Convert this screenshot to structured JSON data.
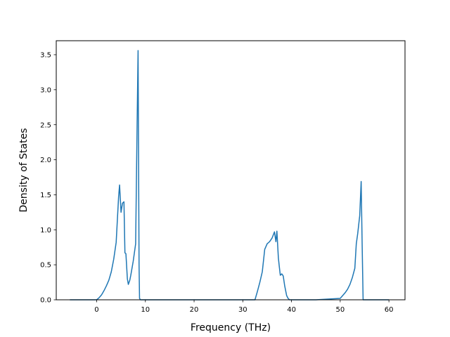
{
  "chart_data": {
    "type": "line",
    "title": "",
    "xlabel": "Frequency (THz)",
    "ylabel": "Density of States",
    "xlim": [
      -8.3,
      63.3
    ],
    "ylim": [
      0,
      3.7
    ],
    "xticks": [
      0,
      10,
      20,
      30,
      40,
      50,
      60
    ],
    "xtick_labels": [
      "0",
      "10",
      "20",
      "30",
      "40",
      "50",
      "60"
    ],
    "yticks": [
      0.0,
      0.5,
      1.0,
      1.5,
      2.0,
      2.5,
      3.0,
      3.5
    ],
    "ytick_labels": [
      "0.0",
      "0.5",
      "1.0",
      "1.5",
      "2.0",
      "2.5",
      "3.0",
      "3.5"
    ],
    "grid": false,
    "legend": "none",
    "series": [
      {
        "color": "#1f77b4",
        "x": [
          -5.5,
          0.0,
          0.5,
          1.0,
          1.5,
          2.0,
          2.5,
          3.0,
          3.5,
          4.0,
          4.5,
          4.7,
          5.0,
          5.3,
          5.6,
          5.8,
          6.0,
          6.3,
          6.5,
          6.8,
          7.0,
          7.5,
          8.0,
          8.3,
          8.5,
          8.7,
          8.8,
          9.0,
          9.2,
          10.0,
          20.0,
          30.0,
          32.5,
          33.0,
          33.5,
          34.0,
          34.5,
          35.0,
          35.5,
          36.0,
          36.5,
          36.8,
          37.0,
          37.3,
          37.5,
          37.7,
          38.0,
          38.3,
          38.6,
          39.0,
          39.3,
          39.6,
          40.0,
          40.5,
          45.0,
          50.0,
          50.5,
          51.0,
          51.5,
          52.0,
          52.5,
          53.0,
          53.3,
          53.6,
          54.0,
          54.3,
          54.5,
          54.7,
          55.0,
          60.0
        ],
        "y": [
          0.0,
          0.0,
          0.03,
          0.07,
          0.13,
          0.2,
          0.28,
          0.4,
          0.58,
          0.82,
          1.47,
          1.64,
          1.25,
          1.38,
          1.4,
          0.67,
          0.66,
          0.3,
          0.22,
          0.28,
          0.35,
          0.55,
          0.8,
          2.5,
          3.56,
          0.5,
          0.02,
          0.0,
          0.0,
          0.0,
          0.0,
          0.0,
          0.0,
          0.12,
          0.25,
          0.4,
          0.72,
          0.8,
          0.83,
          0.88,
          0.97,
          0.83,
          0.98,
          0.6,
          0.47,
          0.35,
          0.37,
          0.34,
          0.2,
          0.06,
          0.02,
          0.0,
          0.0,
          0.0,
          0.0,
          0.02,
          0.06,
          0.1,
          0.15,
          0.22,
          0.32,
          0.45,
          0.8,
          0.95,
          1.2,
          1.69,
          0.8,
          0.0,
          0.0,
          0.0
        ]
      }
    ]
  }
}
